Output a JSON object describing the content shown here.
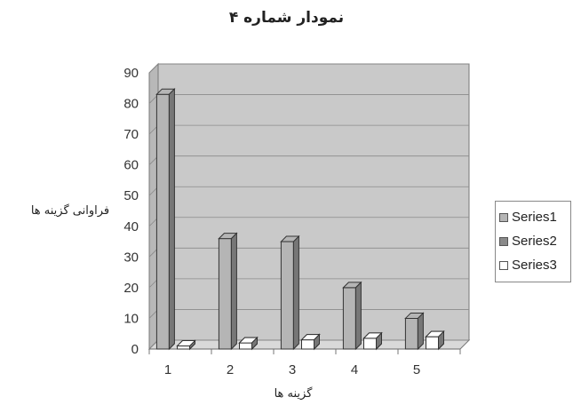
{
  "chart_data": {
    "type": "bar",
    "title": "نمودار شماره ۴",
    "xlabel": "گزینه ها",
    "ylabel": "فراوانی گزینه ها",
    "categories": [
      "1",
      "2",
      "3",
      "4",
      "5"
    ],
    "series": [
      {
        "name": "Series1",
        "values": [
          83,
          36,
          35,
          20,
          10
        ],
        "color": "#b5b5b5"
      },
      {
        "name": "Series2",
        "values": [
          1,
          2,
          3,
          3.5,
          4
        ],
        "color": "#8a8a8a"
      },
      {
        "name": "Series3",
        "values": [
          1,
          2,
          3,
          3.5,
          4
        ],
        "color": "#ffffff"
      }
    ],
    "ylim": [
      0,
      90
    ],
    "yticks": [
      "0",
      "10",
      "20",
      "30",
      "40",
      "50",
      "60",
      "70",
      "80",
      "90"
    ],
    "grid": true,
    "legend_position": "right"
  }
}
